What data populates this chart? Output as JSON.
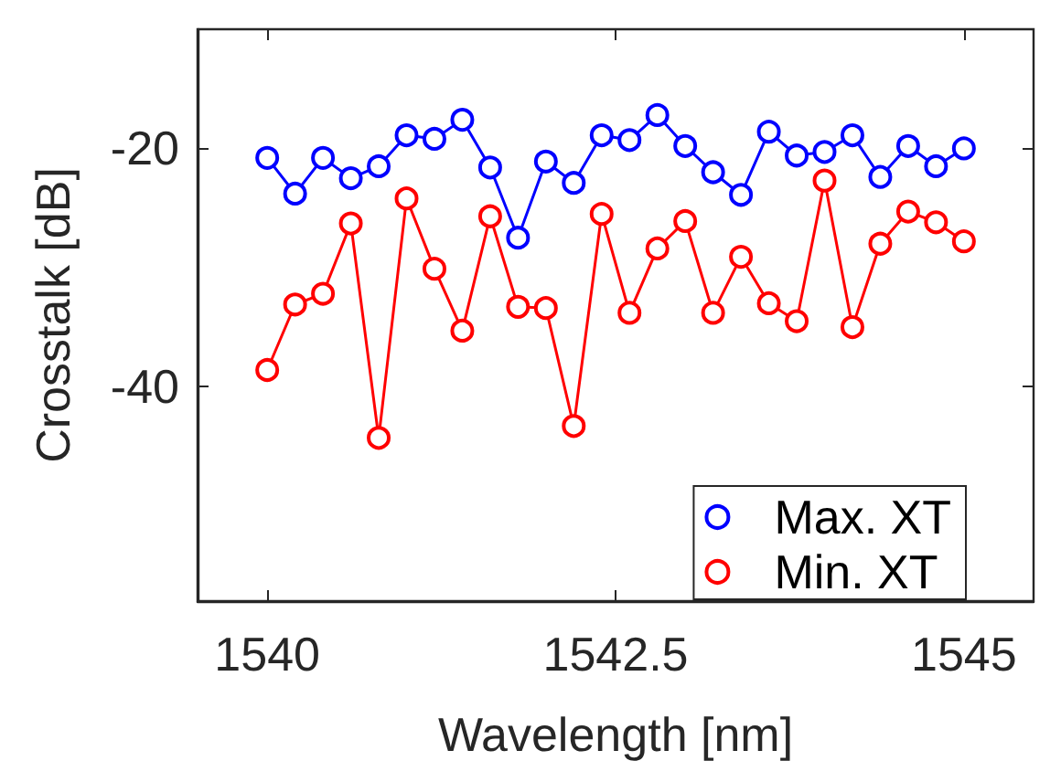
{
  "chart_data": {
    "type": "line",
    "xlabel": "Wavelength [nm]",
    "ylabel": "Crosstalk [dB]",
    "x": [
      1540,
      1540.2,
      1540.4,
      1540.6,
      1540.8,
      1541,
      1541.2,
      1541.4,
      1541.6,
      1541.8,
      1542,
      1542.2,
      1542.4,
      1542.6,
      1542.8,
      1543,
      1543.2,
      1543.4,
      1543.6,
      1543.8,
      1544,
      1544.2,
      1544.4,
      1544.6,
      1544.8,
      1545
    ],
    "series": [
      {
        "name": "Max. XT",
        "color": "#0000ff",
        "values": [
          -20.8,
          -23.8,
          -20.8,
          -22.5,
          -21.5,
          -18.9,
          -19.2,
          -17.6,
          -21.6,
          -27.5,
          -21.1,
          -22.9,
          -18.9,
          -19.3,
          -17.2,
          -19.8,
          -22.0,
          -23.9,
          -18.6,
          -20.6,
          -20.3,
          -18.9,
          -22.4,
          -19.8,
          -21.5,
          -20.0
        ]
      },
      {
        "name": "Min. XT",
        "color": "#ff0000",
        "values": [
          -38.6,
          -33.1,
          -32.2,
          -26.3,
          -44.3,
          -24.2,
          -30.1,
          -35.3,
          -25.7,
          -33.3,
          -33.4,
          -43.3,
          -25.5,
          -33.8,
          -28.4,
          -26.1,
          -33.8,
          -29.1,
          -33.0,
          -34.5,
          -22.7,
          -35.0,
          -28.0,
          -25.3,
          -26.2,
          -27.8
        ]
      }
    ],
    "xlim": [
      1539.5,
      1545.5
    ],
    "xticks": [
      1540,
      1542.5,
      1545
    ],
    "ylim": [
      -58,
      -10
    ],
    "yticks": [
      -40,
      -20
    ],
    "grid": false,
    "legend": "bottom right",
    "marker": "circle",
    "line_style": "solid"
  }
}
